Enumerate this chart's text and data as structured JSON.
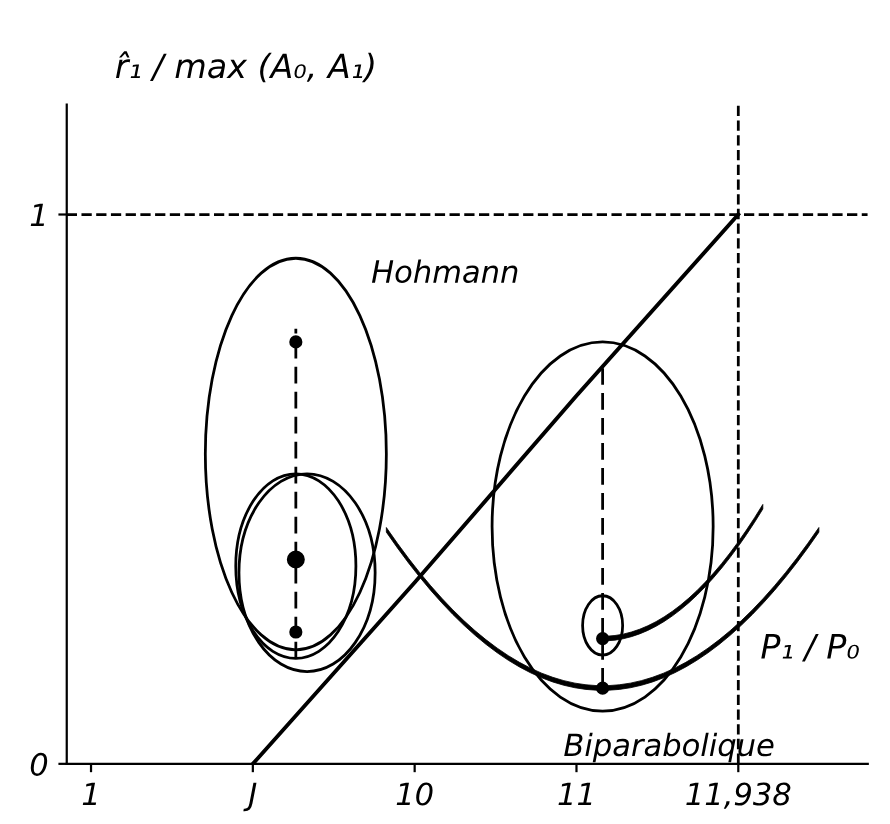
{
  "chart_data": {
    "type": "line",
    "ylabel": "r̂₁ / max (A₀, A₁)",
    "xlabel": "P₁ / P₀",
    "categories": [
      "1",
      "J",
      "10",
      "11",
      "11,938"
    ],
    "series": [
      {
        "color": "#000000",
        "values": [
          null,
          0,
          0.33,
          0.67,
          1
        ]
      }
    ],
    "ylim": [
      0,
      1.2
    ],
    "yticks": [
      0,
      1
    ],
    "ref_lines": [
      {
        "axis": "y",
        "value": 1,
        "line_style": "dashed",
        "color": "#000000"
      },
      {
        "axis": "x",
        "value": "11,938",
        "line_style": "dashed",
        "color": "#000000"
      }
    ],
    "annotations": [
      "Hohmann",
      "Biparabolique"
    ],
    "grid": false,
    "marker": "none",
    "line_style": "solid"
  }
}
